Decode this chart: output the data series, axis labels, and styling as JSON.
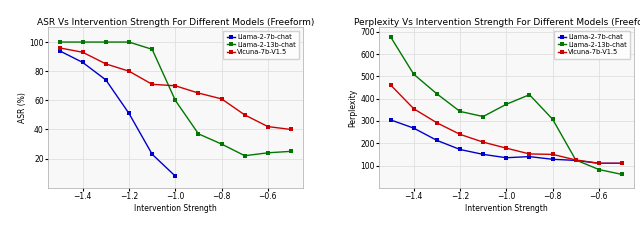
{
  "title1": "ASR Vs Intervention Strength For Different Models (Freeform)",
  "title2": "Perplexity Vs Intervention Strength For Different Models (Freeform)",
  "xlabel": "Intervention Strength",
  "ylabel1": "ASR (%)",
  "ylabel2": "Perplexity",
  "legend_labels": [
    "Llama-2-7b-chat",
    "Llama-2-13b-chat",
    "Vicuna-7b-V1.5"
  ],
  "colors": [
    "#0000cc",
    "#007700",
    "#cc0000"
  ],
  "asr": {
    "x_blue": [
      -1.5,
      -1.4,
      -1.3,
      -1.2,
      -1.1,
      -1.0
    ],
    "y_blue": [
      94,
      86,
      74,
      51,
      23,
      8
    ],
    "x_green": [
      -1.5,
      -1.4,
      -1.3,
      -1.2,
      -1.1,
      -1.0,
      -0.9,
      -0.8,
      -0.7,
      -0.6,
      -0.5
    ],
    "y_green": [
      100,
      100,
      100,
      100,
      95,
      60,
      37,
      30,
      22,
      24,
      25
    ],
    "x_red": [
      -1.5,
      -1.4,
      -1.3,
      -1.2,
      -1.1,
      -1.0,
      -0.9,
      -0.8,
      -0.7,
      -0.6,
      -0.5
    ],
    "y_red": [
      96,
      93,
      85,
      80,
      71,
      70,
      65,
      61,
      50,
      42,
      40
    ]
  },
  "perplexity": {
    "x_blue": [
      -1.5,
      -1.4,
      -1.3,
      -1.2,
      -1.1,
      -1.0,
      -0.9,
      -0.8,
      -0.7,
      -0.6,
      -0.5
    ],
    "y_blue": [
      305,
      268,
      213,
      172,
      150,
      135,
      140,
      128,
      123,
      110,
      110
    ],
    "x_green": [
      -1.5,
      -1.4,
      -1.3,
      -1.2,
      -1.1,
      -1.0,
      -0.9,
      -0.8,
      -0.7,
      -0.6,
      -0.5
    ],
    "y_green": [
      678,
      510,
      422,
      343,
      320,
      375,
      418,
      308,
      125,
      82,
      60
    ],
    "x_red": [
      -1.5,
      -1.4,
      -1.3,
      -1.2,
      -1.1,
      -1.0,
      -0.9,
      -0.8,
      -0.7,
      -0.6,
      -0.5
    ],
    "y_red": [
      462,
      355,
      292,
      240,
      205,
      178,
      152,
      150,
      125,
      110,
      110
    ]
  },
  "asr_ylim": [
    0,
    110
  ],
  "perp_ylim": [
    0,
    720
  ],
  "asr_yticks": [
    20,
    40,
    60,
    80,
    100
  ],
  "perp_yticks": [
    100,
    200,
    300,
    400,
    500,
    600,
    700
  ],
  "xticks": [
    -1.4,
    -1.2,
    -1.0,
    -0.8,
    -0.6
  ],
  "xlim": [
    -1.55,
    -0.45
  ],
  "bg_color": "#ffffff",
  "plot_bg_color": "#f8f8f8",
  "grid_color": "#e0e0e0",
  "title_fontsize": 6.5,
  "label_fontsize": 5.5,
  "tick_fontsize": 5.5,
  "legend_fontsize": 4.8,
  "line_width": 1.0,
  "marker_size": 2.5
}
